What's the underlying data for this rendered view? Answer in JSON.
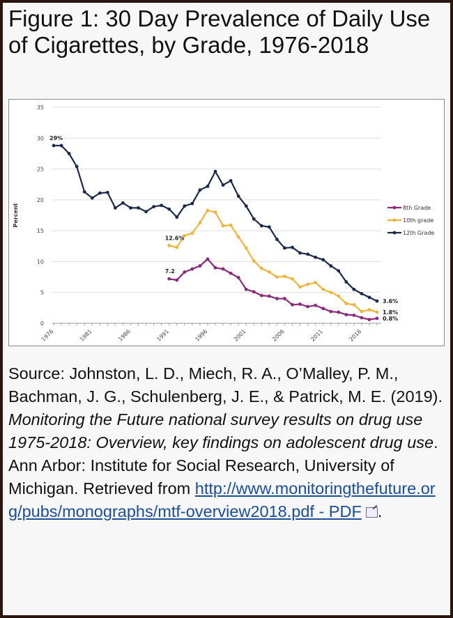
{
  "title": "Figure 1: 30 Day Prevalence of Daily Use of Cigarettes, by Grade, 1976-2018",
  "chart_data": {
    "type": "line",
    "title": "",
    "xlabel": "",
    "ylabel": "Percent",
    "ylim": [
      0,
      35
    ],
    "yticks": [
      "0",
      "5",
      "10",
      "15",
      "20",
      "25",
      "30",
      "35"
    ],
    "xticks": [
      "1976",
      "1981",
      "1986",
      "1991",
      "1996",
      "2001",
      "2006",
      "2011",
      "2016"
    ],
    "xlim": [
      1976,
      2018
    ],
    "grid": true,
    "legend_position": "right",
    "series": [
      {
        "name": "8th Grade",
        "color": "#8b2a7c",
        "start_year": 1991,
        "values": [
          7.2,
          7.0,
          8.3,
          8.8,
          9.3,
          10.4,
          9.0,
          8.8,
          8.1,
          7.4,
          5.5,
          5.1,
          4.5,
          4.4,
          4.0,
          4.0,
          3.0,
          3.1,
          2.7,
          2.9,
          2.4,
          1.9,
          1.8,
          1.4,
          1.3,
          0.9,
          0.6,
          0.8
        ],
        "annotations": [
          {
            "label": "7.2",
            "year": 1991,
            "value": 7.2
          },
          {
            "label": "0.8%",
            "year": 2018,
            "value": 0.8
          }
        ]
      },
      {
        "name": "10th grade",
        "color": "#f0b43c",
        "start_year": 1991,
        "values": [
          12.6,
          12.3,
          14.2,
          14.6,
          16.3,
          18.3,
          18.0,
          15.8,
          15.9,
          14.0,
          12.2,
          10.1,
          8.9,
          8.3,
          7.5,
          7.6,
          7.2,
          5.9,
          6.3,
          6.6,
          5.5,
          5.0,
          4.4,
          3.2,
          3.0,
          1.9,
          2.2,
          1.8
        ],
        "annotations": [
          {
            "label": "12.6%",
            "year": 1991,
            "value": 12.6
          },
          {
            "label": "1.8%",
            "year": 2018,
            "value": 1.8
          }
        ]
      },
      {
        "name": "12th Grade",
        "color": "#1c2a4a",
        "start_year": 1976,
        "values": [
          28.8,
          28.8,
          27.5,
          25.4,
          21.3,
          20.3,
          21.1,
          21.2,
          18.7,
          19.5,
          18.7,
          18.7,
          18.1,
          18.9,
          19.1,
          18.5,
          17.2,
          19.0,
          19.4,
          21.6,
          22.2,
          24.6,
          22.4,
          23.1,
          20.6,
          19.0,
          16.9,
          15.8,
          15.6,
          13.6,
          12.2,
          12.3,
          11.4,
          11.2,
          10.7,
          10.3,
          9.3,
          8.5,
          6.7,
          5.5,
          4.8,
          4.2,
          3.6
        ],
        "annotations": [
          {
            "label": "29%",
            "year": 1976,
            "value": 28.8
          },
          {
            "label": "3.6%",
            "year": 2018,
            "value": 3.6
          }
        ]
      }
    ]
  },
  "source": {
    "prefix": "Source: Johnston, L. D., Miech, R. A., O’Malley, P. M., Bachman, J. G., Schulenberg, J. E., & Patrick, M. E. (2019). ",
    "italic": "Monitoring the Future national survey results on drug use 1975-2018: Overview, key findings on adolescent drug use",
    "middle": ". Ann Arbor: Institute for Social Research, University of Michigan. Retrieved from ",
    "link": "http://www.monitoringthefuture.org/pubs/monographs/mtf-overview2018.pdf - PDF",
    "suffix": "."
  }
}
